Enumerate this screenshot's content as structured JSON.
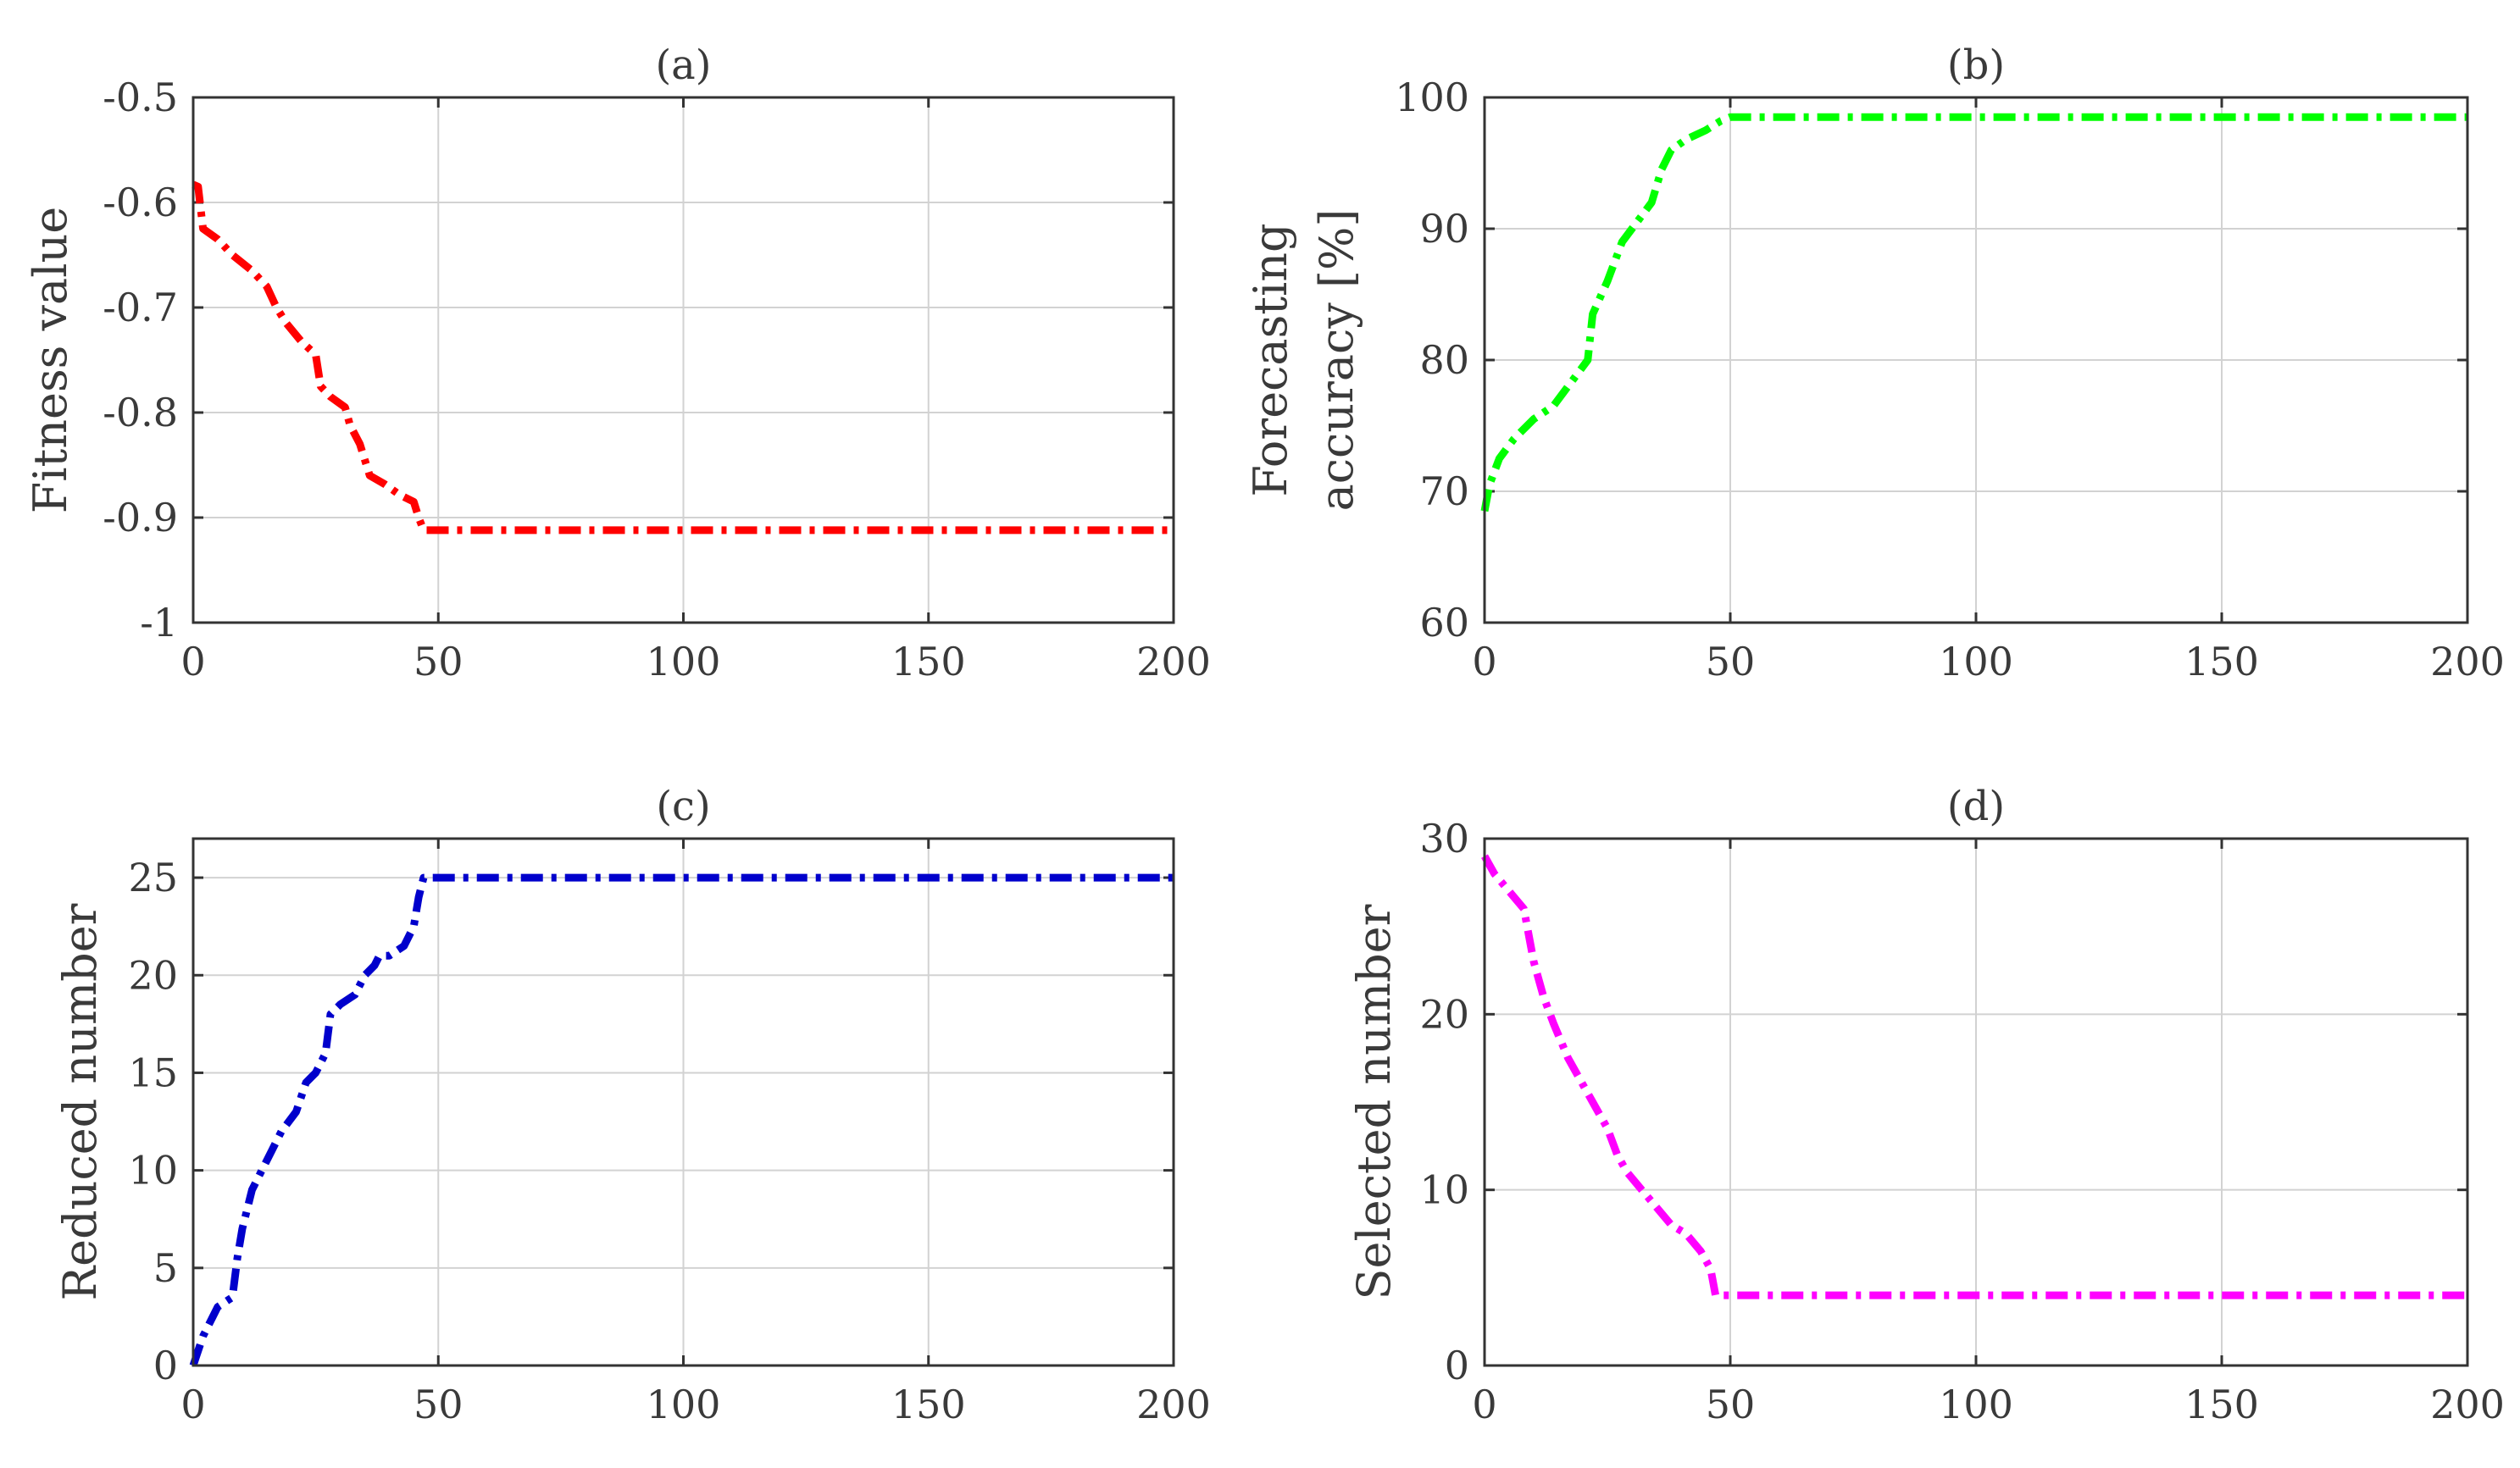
{
  "chart_data": [
    {
      "id": "a",
      "type": "line",
      "title": "(a)",
      "xlabel": "",
      "ylabel_lines": [
        "Fitness value"
      ],
      "xlim": [
        0,
        200
      ],
      "ylim": [
        -1,
        -0.5
      ],
      "xticks": [
        0,
        50,
        100,
        150,
        200
      ],
      "xtick_labels": [
        "0",
        "50",
        "100",
        "150",
        "200"
      ],
      "yticks": [
        -1,
        -0.9,
        -0.8,
        -0.7,
        -0.6,
        -0.5
      ],
      "ytick_labels": [
        "-1",
        "-0.9",
        "-0.8",
        "-0.7",
        "-0.6",
        "-0.5"
      ],
      "grid": true,
      "series": [
        {
          "name": "Fitness value",
          "color": "#ff0000",
          "x": [
            0,
            1,
            2,
            5,
            8,
            12,
            15,
            17,
            19,
            22,
            25,
            26,
            28,
            31,
            32,
            34,
            36,
            39,
            42,
            45,
            46,
            47,
            48,
            200
          ],
          "y": [
            -0.583,
            -0.585,
            -0.625,
            -0.635,
            -0.65,
            -0.665,
            -0.68,
            -0.7,
            -0.715,
            -0.732,
            -0.745,
            -0.775,
            -0.785,
            -0.795,
            -0.812,
            -0.83,
            -0.86,
            -0.868,
            -0.878,
            -0.885,
            -0.9,
            -0.912,
            -0.912,
            -0.912
          ]
        }
      ]
    },
    {
      "id": "b",
      "type": "line",
      "title": "(b)",
      "xlabel": "",
      "ylabel_lines": [
        "Forecasting",
        "accuracy [%]"
      ],
      "xlim": [
        0,
        200
      ],
      "ylim": [
        60,
        100
      ],
      "xticks": [
        0,
        50,
        100,
        150,
        200
      ],
      "xtick_labels": [
        "0",
        "50",
        "100",
        "150",
        "200"
      ],
      "yticks": [
        60,
        70,
        80,
        90,
        100
      ],
      "ytick_labels": [
        "60",
        "70",
        "80",
        "90",
        "100"
      ],
      "grid": true,
      "series": [
        {
          "name": "Forecasting accuracy",
          "color": "#00ff00",
          "x": [
            0,
            1,
            3,
            6,
            10,
            14,
            18,
            21,
            22,
            25,
            28,
            31,
            34,
            36,
            38,
            41,
            45,
            48,
            50,
            200
          ],
          "y": [
            68.5,
            70.5,
            72.5,
            74,
            75.5,
            76.5,
            78.5,
            80,
            83.5,
            86,
            89,
            90.5,
            92,
            94.5,
            96,
            96.8,
            97.5,
            98.2,
            98.5,
            98.5
          ]
        }
      ]
    },
    {
      "id": "c",
      "type": "line",
      "title": "(c)",
      "xlabel": "",
      "ylabel_lines": [
        "Reduced number"
      ],
      "xlim": [
        0,
        200
      ],
      "ylim": [
        0,
        27
      ],
      "xticks": [
        0,
        50,
        100,
        150,
        200
      ],
      "xtick_labels": [
        "0",
        "50",
        "100",
        "150",
        "200"
      ],
      "yticks": [
        0,
        5,
        10,
        15,
        20,
        25
      ],
      "ytick_labels": [
        "0",
        "5",
        "10",
        "15",
        "20",
        "25"
      ],
      "grid": true,
      "series": [
        {
          "name": "Reduced number",
          "color": "#0000cc",
          "x": [
            0,
            2,
            5,
            8,
            9,
            10,
            12,
            14,
            16,
            18,
            21,
            23,
            25,
            27,
            28,
            30,
            33,
            35,
            37,
            38,
            40,
            43,
            45,
            46,
            47,
            48,
            200
          ],
          "y": [
            0,
            1.5,
            3,
            3.5,
            5.5,
            7,
            9,
            10,
            11,
            12,
            13,
            14.5,
            15,
            16,
            18,
            18.5,
            19,
            20,
            20.5,
            21,
            21,
            21.5,
            22.5,
            24,
            25,
            25,
            25
          ]
        }
      ]
    },
    {
      "id": "d",
      "type": "line",
      "title": "(d)",
      "xlabel": "",
      "ylabel_lines": [
        "Selected number"
      ],
      "xlim": [
        0,
        200
      ],
      "ylim": [
        0,
        30
      ],
      "xticks": [
        0,
        50,
        100,
        150,
        200
      ],
      "xtick_labels": [
        "0",
        "50",
        "100",
        "150",
        "200"
      ],
      "yticks": [
        0,
        10,
        20,
        30
      ],
      "ytick_labels": [
        "0",
        "10",
        "20",
        "30"
      ],
      "grid": true,
      "series": [
        {
          "name": "Selected number",
          "color": "#ff00ff",
          "x": [
            0,
            2,
            5,
            8,
            10,
            12,
            14,
            17,
            20,
            22,
            25,
            27,
            29,
            32,
            35,
            38,
            41,
            44,
            46,
            47,
            200
          ],
          "y": [
            29,
            28,
            27,
            26,
            23,
            21,
            19.5,
            17.5,
            16,
            15,
            13.5,
            12,
            11,
            10,
            9,
            8,
            7.5,
            6.5,
            5.5,
            4,
            4
          ]
        }
      ]
    }
  ]
}
